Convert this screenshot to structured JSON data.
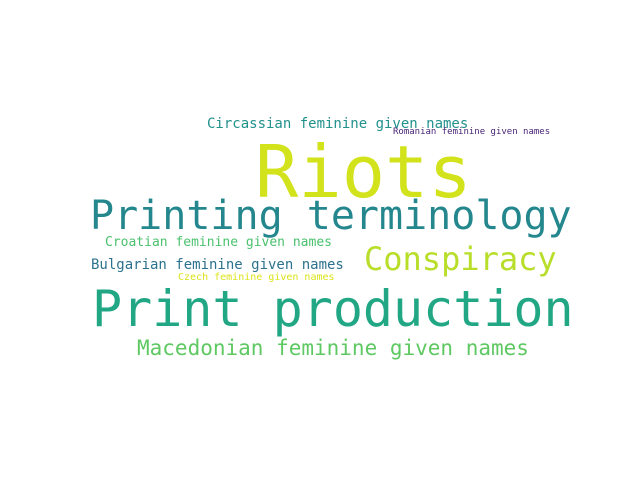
{
  "word_cloud": {
    "background_color": "#ffffff",
    "words": [
      {
        "text": "Riots",
        "color": "#d2e21b"
      },
      {
        "text": "Printing terminology",
        "color": "#24878e"
      },
      {
        "text": "Print production",
        "color": "#22a785"
      },
      {
        "text": "Conspiracy",
        "color": "#b8de29"
      },
      {
        "text": "Macedonian feminine given names",
        "color": "#5ec962"
      },
      {
        "text": "Circassian feminine given names",
        "color": "#21918c"
      },
      {
        "text": "Romanian feminine given names",
        "color": "#482475"
      },
      {
        "text": "Croatian feminine given names",
        "color": "#4ac16d"
      },
      {
        "text": "Bulgarian feminine given names",
        "color": "#2c728e"
      },
      {
        "text": "Czech feminine given names",
        "color": "#dde318"
      }
    ]
  }
}
